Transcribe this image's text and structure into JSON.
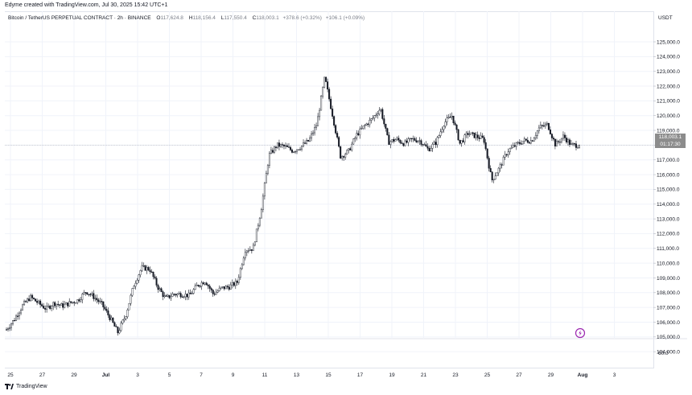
{
  "header": {
    "credit": "Edyme created with TradingView.com, Jul 30, 2025 15:42 UTC+1"
  },
  "legend": {
    "symbol": "Bitcoin / TetherUS PERPETUAL CONTRACT · 2h · BINANCE",
    "open_key": "O",
    "open": "117,624.8",
    "high_key": "H",
    "high": "118,156.4",
    "low_key": "L",
    "low": "117,550.4",
    "close_key": "C",
    "close": "118,003.1",
    "change": "+378.6 (+0.32%)",
    "volume": "+106.1 (+0.09%)"
  },
  "price_scale": {
    "currency": "USDT",
    "last_price": "118,003.1",
    "countdown": "01:17:30",
    "volume_label": "60.0"
  },
  "footer": {
    "brand": "TradingView"
  },
  "icons": {
    "alert": "lightning-alert-icon",
    "logo": "tradingview-logo-icon"
  },
  "colors": {
    "candle": "#131722",
    "grid": "#e0e3eb",
    "badge": "#8c8c8c",
    "alert": "#9c27b0"
  },
  "chart_data": {
    "type": "candlestick",
    "title": "Bitcoin / TetherUS PERPETUAL CONTRACT · 2h · BINANCE",
    "ylabel": "USDT",
    "ylim": [
      103300,
      126200
    ],
    "y_ticks": [
      "104,000.0",
      "105,000.0",
      "106,000.0",
      "107,000.0",
      "108,000.0",
      "109,000.0",
      "110,000.0",
      "111,000.0",
      "112,000.0",
      "113,000.0",
      "114,000.0",
      "115,000.0",
      "116,000.0",
      "117,000.0",
      "118,000.0",
      "119,000.0",
      "120,000.0",
      "121,000.0",
      "122,000.0",
      "123,000.0",
      "124,000.0",
      "125,000.0"
    ],
    "x_ticks": [
      "25",
      "27",
      "29",
      "Jul",
      "3",
      "5",
      "7",
      "9",
      "11",
      "13",
      "15",
      "17",
      "19",
      "21",
      "23",
      "25",
      "27",
      "29",
      "Aug",
      "3"
    ],
    "x_ticks_bold": [
      "Jul",
      "Aug"
    ],
    "last_close": 118003.1,
    "path_points": [
      [
        0,
        105500
      ],
      [
        0.5,
        106200
      ],
      [
        1.0,
        107100
      ],
      [
        1.5,
        107700
      ],
      [
        2.0,
        107300
      ],
      [
        2.5,
        106900
      ],
      [
        3.0,
        107300
      ],
      [
        3.5,
        107100
      ],
      [
        4.0,
        107300
      ],
      [
        4.5,
        107500
      ],
      [
        5.0,
        108100
      ],
      [
        5.5,
        107700
      ],
      [
        6.0,
        107200
      ],
      [
        6.5,
        106300
      ],
      [
        7.0,
        105300
      ],
      [
        7.5,
        106500
      ],
      [
        8.0,
        108500
      ],
      [
        8.5,
        109700
      ],
      [
        9.0,
        109600
      ],
      [
        9.5,
        108400
      ],
      [
        10.0,
        107600
      ],
      [
        10.5,
        107900
      ],
      [
        11.0,
        107900
      ],
      [
        11.5,
        107800
      ],
      [
        12.0,
        108500
      ],
      [
        12.5,
        108800
      ],
      [
        13.0,
        107900
      ],
      [
        13.5,
        108300
      ],
      [
        14.0,
        108400
      ],
      [
        14.5,
        108700
      ],
      [
        15.0,
        110900
      ],
      [
        15.5,
        111000
      ],
      [
        16.0,
        113600
      ],
      [
        16.5,
        117300
      ],
      [
        17.0,
        118000
      ],
      [
        17.5,
        117900
      ],
      [
        18.0,
        117600
      ],
      [
        18.5,
        117900
      ],
      [
        19.0,
        118300
      ],
      [
        19.5,
        119400
      ],
      [
        20.0,
        122600
      ],
      [
        20.5,
        120000
      ],
      [
        21.0,
        117200
      ],
      [
        21.5,
        117600
      ],
      [
        22.0,
        118700
      ],
      [
        22.5,
        119300
      ],
      [
        23.0,
        119800
      ],
      [
        23.5,
        120500
      ],
      [
        24.0,
        118200
      ],
      [
        24.5,
        118400
      ],
      [
        25.0,
        118100
      ],
      [
        25.5,
        118400
      ],
      [
        26.0,
        118300
      ],
      [
        26.5,
        117700
      ],
      [
        27.0,
        118200
      ],
      [
        27.5,
        119500
      ],
      [
        28.0,
        120000
      ],
      [
        28.5,
        118100
      ],
      [
        29.0,
        118800
      ],
      [
        29.5,
        118600
      ],
      [
        30.0,
        118400
      ],
      [
        30.5,
        115600
      ],
      [
        31.0,
        116500
      ],
      [
        31.5,
        117600
      ],
      [
        32.0,
        118000
      ],
      [
        32.5,
        118300
      ],
      [
        33.0,
        118300
      ],
      [
        33.5,
        119200
      ],
      [
        34.0,
        119400
      ],
      [
        34.5,
        118000
      ],
      [
        35.0,
        118600
      ],
      [
        35.5,
        118000
      ],
      [
        36.0,
        118003
      ]
    ]
  }
}
